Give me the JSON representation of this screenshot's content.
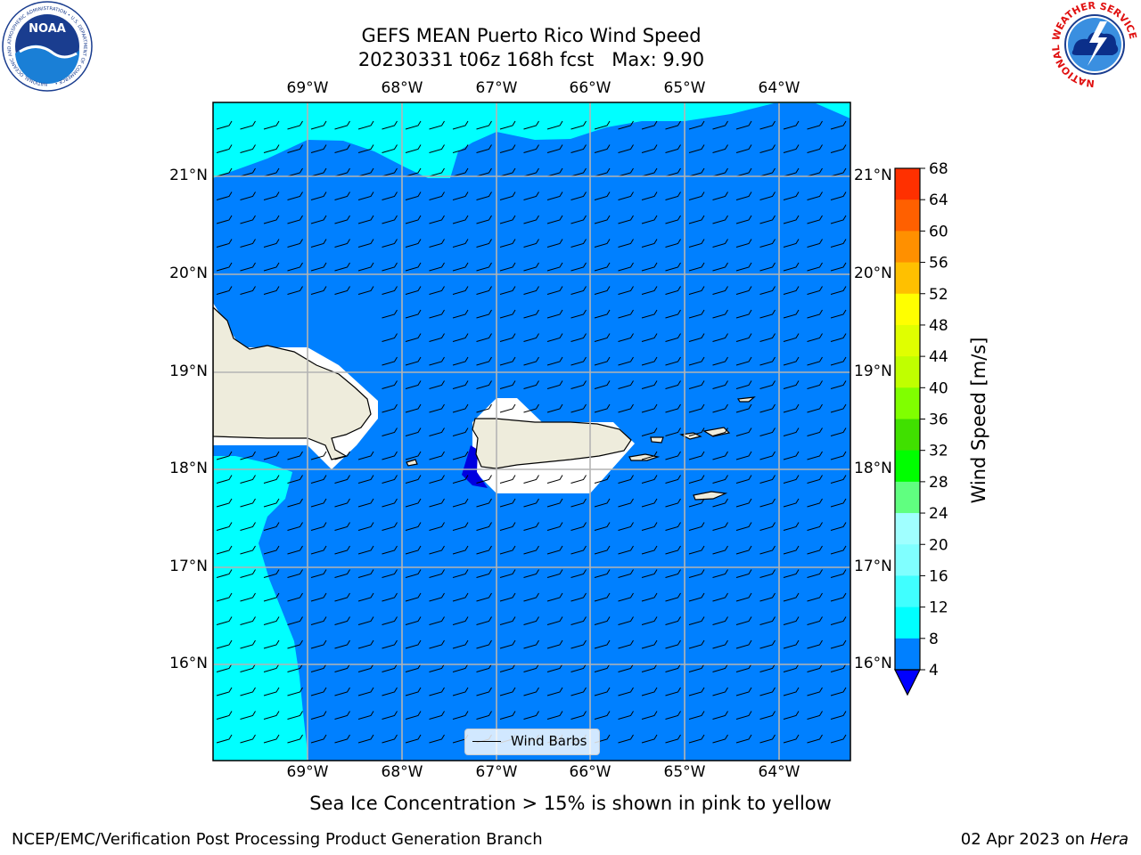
{
  "header": {
    "title_line1": "GEFS MEAN Puerto Rico Wind Speed",
    "title_line2": "20230331 t06z 168h fcst   Max: 9.90"
  },
  "map": {
    "lon_labels": [
      "69°W",
      "68°W",
      "67°W",
      "66°W",
      "65°W",
      "64°W"
    ],
    "lat_labels": [
      "21°N",
      "20°N",
      "19°N",
      "18°N",
      "17°N",
      "16°N"
    ],
    "legend_label": "Wind Barbs",
    "colors": {
      "ocean": "#0080ff",
      "cyan": "#00ffff",
      "land": "#eeecdc",
      "blank": "#ffffff",
      "deep": "#0000e0",
      "grid": "#b4b4b4"
    }
  },
  "colorbar": {
    "label": "Wind Speed [m/s]",
    "ticks": [
      "4",
      "8",
      "12",
      "16",
      "20",
      "24",
      "28",
      "32",
      "36",
      "40",
      "44",
      "48",
      "52",
      "56",
      "60",
      "64",
      "68"
    ],
    "colors": [
      "#0080ff",
      "#00ffff",
      "#40ffff",
      "#80ffff",
      "#a0ffff",
      "#60ff80",
      "#00ff00",
      "#40e000",
      "#80ff00",
      "#c0ff00",
      "#e0ff00",
      "#ffff00",
      "#ffc000",
      "#ff9000",
      "#ff6000",
      "#ff3000",
      "#ff0000"
    ],
    "under_color": "#0000ff"
  },
  "footer": {
    "note": "Sea Ice Concentration > 15% is shown in pink to yellow",
    "branch": "NCEP/EMC/Verification Post Processing Product Generation Branch",
    "date": "02 Apr 2023 on ",
    "machine": "Hera"
  },
  "logos": {
    "noaa_text": "NOAA",
    "noaa_ring": "NATIONAL OCEANIC AND ATMOSPHERIC ADMINISTRATION • U.S. DEPARTMENT OF COMMERCE •",
    "nws_ring": "NATIONAL WEATHER SERVICE"
  }
}
